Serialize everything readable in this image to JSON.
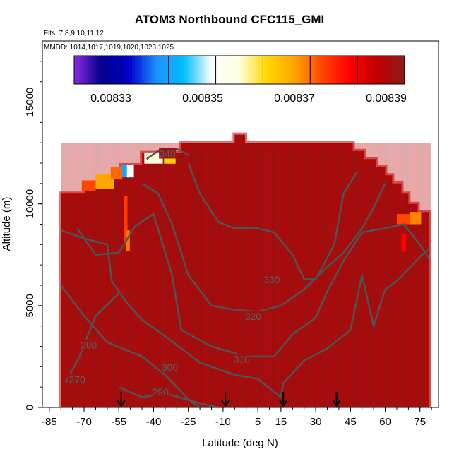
{
  "chart_data": {
    "type": "heatmap",
    "title": "ATOM3 Northbound CFC115_GMI",
    "notes": [
      "Flts: 7,8,9,10,11,12",
      "MMDD: 1014,1017,1019,1020,1023,1025"
    ],
    "xlabel": "Latitude (deg N)",
    "ylabel": "Altitude (m)",
    "xlim": [
      -88,
      83
    ],
    "ylim": [
      0,
      18000
    ],
    "x_ticks": [
      -85,
      -70,
      -55,
      -40,
      -25,
      -10,
      5,
      15,
      30,
      45,
      60,
      75
    ],
    "x_ticklabels": [
      "-85",
      "-70",
      "-55",
      "-40",
      "-25",
      "-10",
      "5",
      "15",
      "30",
      "45",
      "60",
      "75"
    ],
    "y_ticks": [
      0,
      5000,
      10000,
      15000
    ],
    "y_ticklabels": [
      "0",
      "5000",
      "10000",
      "15000"
    ],
    "colorbar": {
      "range": [
        0.008322,
        0.008394
      ],
      "ticks": [
        0.00833,
        0.00835,
        0.00837,
        0.00839
      ],
      "ticklabels": [
        "0.00833",
        "0.00835",
        "0.00837",
        "0.00839"
      ],
      "colors": [
        "#8a2be2",
        "#00008b",
        "#0000cd",
        "#1e90ff",
        "#00bfff",
        "#ffffff",
        "#ffffe0",
        "#ffd700",
        "#ffa500",
        "#ff4500",
        "#ff0000",
        "#c00000",
        "#8b1a1a"
      ]
    },
    "background_value": 0.008392,
    "outline": [
      [
        -80,
        0
      ],
      [
        -80,
        10500
      ],
      [
        -70,
        10500
      ],
      [
        -68,
        10900
      ],
      [
        -60,
        11300
      ],
      [
        -54,
        11300
      ],
      [
        -54,
        11900
      ],
      [
        -45,
        11900
      ],
      [
        -45,
        12500
      ],
      [
        -28,
        12500
      ],
      [
        -28,
        13000
      ],
      [
        -5,
        13000
      ],
      [
        -5,
        13400
      ],
      [
        -0.5,
        13400
      ],
      [
        -0.5,
        13000
      ],
      [
        46,
        13000
      ],
      [
        46,
        12600
      ],
      [
        51,
        12600
      ],
      [
        51,
        12200
      ],
      [
        56,
        12200
      ],
      [
        56,
        11800
      ],
      [
        60,
        11800
      ],
      [
        60,
        11400
      ],
      [
        63,
        11400
      ],
      [
        63,
        11000
      ],
      [
        67,
        11000
      ],
      [
        67,
        10500
      ],
      [
        70,
        10500
      ],
      [
        70,
        10000
      ],
      [
        74,
        10000
      ],
      [
        74,
        9600
      ],
      [
        79,
        9600
      ],
      [
        79,
        0
      ]
    ],
    "anomalies": [
      {
        "lat": -52,
        "alt": 11600,
        "w": 4,
        "h": 600,
        "value": 0.008343
      },
      {
        "lat": -50,
        "alt": 11600,
        "w": 3,
        "h": 600,
        "value": 0.008352
      },
      {
        "lat": -40,
        "alt": 12250,
        "w": 8,
        "h": 550,
        "value": 0.008358
      },
      {
        "lat": -33,
        "alt": 12250,
        "w": 5,
        "h": 550,
        "value": 0.008365
      },
      {
        "lat": -68,
        "alt": 10900,
        "w": 6,
        "h": 500,
        "value": 0.008376
      },
      {
        "lat": -61,
        "alt": 11100,
        "w": 8,
        "h": 700,
        "value": 0.00837
      },
      {
        "lat": -56,
        "alt": 11500,
        "w": 5,
        "h": 600,
        "value": 0.008374
      },
      {
        "lat": -52,
        "alt": 9200,
        "w": 1.5,
        "h": 2400,
        "value": 0.008377
      },
      {
        "lat": -51,
        "alt": 8200,
        "w": 1.5,
        "h": 1000,
        "value": 0.008373
      },
      {
        "lat": 69,
        "alt": 9250,
        "w": 8,
        "h": 500,
        "value": 0.008376
      },
      {
        "lat": 73,
        "alt": 9300,
        "w": 5,
        "h": 600,
        "value": 0.008372
      },
      {
        "lat": 68,
        "alt": 8100,
        "w": 2,
        "h": 900,
        "value": 0.008382
      }
    ],
    "contours": [
      {
        "level": "270",
        "points": [
          [
            -78,
            1200
          ],
          [
            -72,
            2500
          ],
          [
            -65,
            4500
          ],
          [
            -55,
            5600
          ]
        ],
        "label_at": [
          -73,
          1300
        ]
      },
      {
        "level": "280",
        "points": [
          [
            -80,
            6000
          ],
          [
            -70,
            4500
          ],
          [
            -60,
            3200
          ],
          [
            -45,
            2500
          ],
          [
            -35,
            1600
          ],
          [
            -25,
            400
          ],
          [
            -20,
            0
          ]
        ],
        "label_at": [
          -68,
          3000
        ]
      },
      {
        "level": "290",
        "points": [
          [
            -55,
            1000
          ],
          [
            -45,
            500
          ],
          [
            -35,
            700
          ],
          [
            -20,
            200
          ],
          [
            -12,
            0
          ]
        ],
        "label_at": [
          -37,
          700
        ]
      },
      {
        "level": "300",
        "points": [
          [
            -80,
            8700
          ],
          [
            -70,
            8300
          ],
          [
            -60,
            8000
          ],
          [
            -58,
            6200
          ],
          [
            -52,
            5200
          ],
          [
            -45,
            4300
          ],
          [
            -35,
            3500
          ],
          [
            -20,
            2200
          ],
          [
            -5,
            1600
          ],
          [
            5,
            1400
          ],
          [
            15,
            500
          ],
          [
            16,
            1200
          ],
          [
            25,
            2300
          ],
          [
            35,
            2900
          ],
          [
            45,
            3800
          ],
          [
            50,
            6500
          ],
          [
            55,
            4000
          ],
          [
            60,
            5800
          ],
          [
            65,
            6200
          ],
          [
            75,
            7400
          ],
          [
            79,
            7800
          ]
        ],
        "label_at": [
          -33,
          1900
        ]
      },
      {
        "level": "310",
        "points": [
          [
            -73,
            8800
          ],
          [
            -65,
            7500
          ],
          [
            -55,
            7600
          ],
          [
            -48,
            8900
          ],
          [
            -40,
            9500
          ],
          [
            -32,
            6500
          ],
          [
            -28,
            3800
          ],
          [
            -15,
            3000
          ],
          [
            0,
            2500
          ],
          [
            12,
            2500
          ],
          [
            20,
            3600
          ],
          [
            30,
            4400
          ],
          [
            35,
            5700
          ],
          [
            42,
            7200
          ],
          [
            50,
            8600
          ],
          [
            60,
            8800
          ],
          [
            68,
            9000
          ],
          [
            75,
            8000
          ],
          [
            79,
            7300
          ]
        ],
        "label_at": [
          -2,
          2300
        ]
      },
      {
        "level": "320",
        "points": [
          [
            -45,
            11000
          ],
          [
            -38,
            10500
          ],
          [
            -32,
            9000
          ],
          [
            -25,
            6500
          ],
          [
            -15,
            5000
          ],
          [
            -5,
            4800
          ],
          [
            5,
            4700
          ],
          [
            15,
            5000
          ],
          [
            25,
            5800
          ],
          [
            35,
            6900
          ],
          [
            42,
            7600
          ],
          [
            50,
            8800
          ],
          [
            55,
            9800
          ],
          [
            60,
            11000
          ]
        ],
        "label_at": [
          3,
          4400
        ]
      },
      {
        "level": "330",
        "points": [
          [
            -25,
            12000
          ],
          [
            -20,
            10500
          ],
          [
            -12,
            9100
          ],
          [
            -5,
            8800
          ],
          [
            5,
            8800
          ],
          [
            12,
            8600
          ],
          [
            20,
            7500
          ],
          [
            25,
            6300
          ],
          [
            30,
            6300
          ],
          [
            38,
            8000
          ],
          [
            42,
            10500
          ],
          [
            48,
            11600
          ]
        ],
        "label_at": [
          11,
          6200
        ]
      },
      {
        "level": "340",
        "points": [
          [
            -43,
            12200
          ],
          [
            -38,
            12600
          ],
          [
            -30,
            12700
          ],
          [
            -25,
            12400
          ]
        ],
        "label_at": [
          -34,
          12400
        ]
      }
    ],
    "event_markers": [
      -54,
      -9,
      16,
      39
    ]
  }
}
